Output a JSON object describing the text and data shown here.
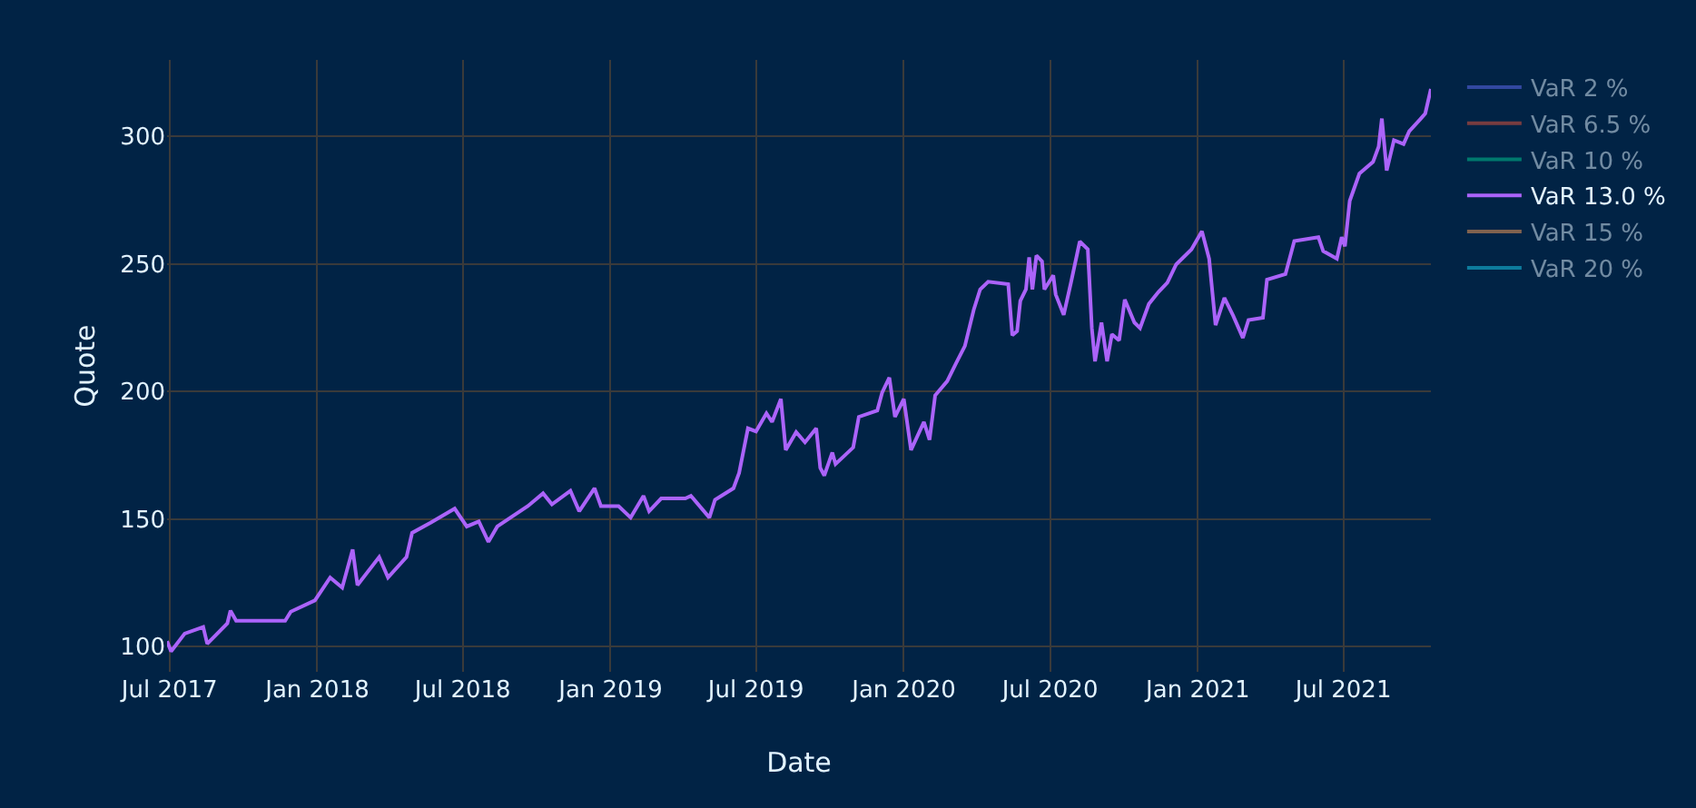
{
  "chart_data": {
    "type": "line",
    "xlabel": "Date",
    "ylabel": "Quote",
    "x": [
      "2017-06-28",
      "2017-07-03",
      "2017-07-20",
      "2017-08-12",
      "2017-08-17",
      "2017-09-11",
      "2017-09-15",
      "2017-09-22",
      "2017-11-22",
      "2017-11-29",
      "2017-12-29",
      "2018-01-17",
      "2018-02-01",
      "2018-02-14",
      "2018-02-20",
      "2018-03-19",
      "2018-03-30",
      "2018-04-22",
      "2018-04-29",
      "2018-05-22",
      "2018-06-21",
      "2018-07-06",
      "2018-07-21",
      "2018-08-02",
      "2018-08-13",
      "2018-09-20",
      "2018-10-09",
      "2018-10-20",
      "2018-11-12",
      "2018-11-23",
      "2018-12-12",
      "2018-12-20",
      "2019-01-11",
      "2019-01-26",
      "2019-02-11",
      "2019-02-18",
      "2019-03-05",
      "2019-04-04",
      "2019-04-11",
      "2019-05-04",
      "2019-05-11",
      "2019-06-03",
      "2019-06-10",
      "2019-06-21",
      "2019-07-01",
      "2019-07-14",
      "2019-07-21",
      "2019-08-01",
      "2019-08-07",
      "2019-08-20",
      "2019-08-31",
      "2019-09-14",
      "2019-09-19",
      "2019-09-24",
      "2019-10-04",
      "2019-10-08",
      "2019-10-30",
      "2019-11-06",
      "2019-11-29",
      "2019-12-05",
      "2019-12-14",
      "2019-12-21",
      "2020-01-01",
      "2020-01-10",
      "2020-01-26",
      "2020-02-02",
      "2020-02-09",
      "2020-02-24",
      "2020-03-06",
      "2020-03-17",
      "2020-03-28",
      "2020-04-05",
      "2020-04-15",
      "2020-05-10",
      "2020-05-15",
      "2020-05-21",
      "2020-05-25",
      "2020-06-01",
      "2020-06-05",
      "2020-06-09",
      "2020-06-14",
      "2020-06-21",
      "2020-06-24",
      "2020-07-05",
      "2020-07-08",
      "2020-07-18",
      "2020-07-27",
      "2020-08-07",
      "2020-08-17",
      "2020-08-22",
      "2020-08-26",
      "2020-09-03",
      "2020-09-10",
      "2020-09-16",
      "2020-09-25",
      "2020-10-02",
      "2020-10-14",
      "2020-10-21",
      "2020-11-01",
      "2020-11-13",
      "2020-11-24",
      "2020-12-05",
      "2020-12-24",
      "2021-01-06",
      "2021-01-15",
      "2021-01-23",
      "2021-02-03",
      "2021-02-14",
      "2021-02-26",
      "2021-03-05",
      "2021-03-23",
      "2021-03-28",
      "2021-04-20",
      "2021-05-01",
      "2021-05-31",
      "2021-06-06",
      "2021-06-23",
      "2021-06-29",
      "2021-07-03",
      "2021-07-09",
      "2021-07-21",
      "2021-08-07",
      "2021-08-14",
      "2021-08-18",
      "2021-08-24",
      "2021-09-02",
      "2021-09-14",
      "2021-09-21",
      "2021-10-05",
      "2021-10-11",
      "2021-10-18"
    ],
    "series": [
      {
        "name": "VaR 2 %",
        "color": "#636efa",
        "values": [
          null,
          null,
          null,
          null,
          null,
          null,
          null,
          null,
          null,
          null,
          null,
          null,
          null,
          null,
          null,
          null,
          null,
          null,
          null,
          null,
          null,
          null,
          null,
          null,
          null,
          null,
          null,
          null,
          null,
          null,
          null,
          null,
          null,
          null,
          null,
          null,
          null,
          null,
          null,
          null,
          null,
          null,
          null,
          null,
          null,
          null,
          null,
          null,
          null,
          null,
          null,
          null,
          null,
          null,
          null,
          null,
          null,
          null,
          null,
          null,
          null,
          null,
          null,
          null,
          null,
          null,
          null,
          null,
          null,
          null,
          null,
          null,
          null,
          null,
          null,
          null,
          null,
          null,
          null,
          null,
          null,
          null,
          null,
          null,
          null,
          null,
          null,
          null,
          null,
          null,
          null,
          null,
          null,
          null,
          null,
          null,
          null,
          null,
          null,
          null,
          null,
          null,
          null,
          null,
          null,
          null,
          null,
          null,
          null,
          null,
          null,
          null,
          null,
          null,
          null,
          null,
          null,
          null,
          null,
          null,
          null,
          null,
          null,
          null,
          null,
          null,
          null,
          null,
          null,
          null,
          null
        ]
      },
      {
        "name": "VaR 6.5 %",
        "color": "#ef553b",
        "values": [
          null,
          null,
          null,
          null,
          null,
          null,
          null,
          null,
          null,
          null,
          null,
          null,
          null,
          null,
          null,
          null,
          null,
          null,
          null,
          null,
          null,
          null,
          null,
          null,
          null,
          null,
          null,
          null,
          null,
          null,
          null,
          null,
          null,
          null,
          null,
          null,
          null,
          null,
          null,
          null,
          null,
          null,
          null,
          null,
          null,
          null,
          null,
          null,
          null,
          null,
          null,
          null,
          null,
          null,
          null,
          null,
          null,
          null,
          null,
          null,
          null,
          null,
          null,
          null,
          null,
          null,
          null,
          null,
          null,
          null,
          null,
          null,
          null,
          null,
          null,
          null,
          null,
          null,
          null,
          null,
          null,
          null,
          null,
          null,
          null,
          null,
          null,
          null,
          null,
          null,
          null,
          null,
          null,
          null,
          null,
          null,
          null,
          null,
          null,
          null,
          null,
          null,
          null,
          null,
          null,
          null,
          null,
          null,
          null,
          null,
          null,
          null,
          null,
          null,
          null,
          null,
          null,
          null,
          null,
          null,
          null,
          null,
          null,
          null,
          null,
          null,
          null,
          null,
          null,
          null,
          null
        ]
      },
      {
        "name": "VaR 10 %",
        "color": "#00cc96",
        "values": [
          null,
          null,
          null,
          null,
          null,
          null,
          null,
          null,
          null,
          null,
          null,
          null,
          null,
          null,
          null,
          null,
          null,
          null,
          null,
          null,
          null,
          null,
          null,
          null,
          null,
          null,
          null,
          null,
          null,
          null,
          null,
          null,
          null,
          null,
          null,
          null,
          null,
          null,
          null,
          null,
          null,
          null,
          null,
          null,
          null,
          null,
          null,
          null,
          null,
          null,
          null,
          null,
          null,
          null,
          null,
          null,
          null,
          null,
          null,
          null,
          null,
          null,
          null,
          null,
          null,
          null,
          null,
          null,
          null,
          null,
          null,
          null,
          null,
          null,
          null,
          null,
          null,
          null,
          null,
          null,
          null,
          null,
          null,
          null,
          null,
          null,
          null,
          null,
          null,
          null,
          null,
          null,
          null,
          null,
          null,
          null,
          null,
          null,
          null,
          null,
          null,
          null,
          null,
          null,
          null,
          null,
          null,
          null,
          null,
          null,
          null,
          null,
          null,
          null,
          null,
          null,
          null,
          null,
          null,
          null,
          null,
          null,
          null,
          null,
          null,
          null,
          null,
          null,
          null,
          null,
          null
        ]
      },
      {
        "name": "VaR 13.0 %",
        "color": "#ab63fa",
        "values": [
          102,
          98,
          105,
          107.6,
          101,
          109,
          114,
          110,
          110,
          113.6,
          118,
          127,
          123,
          138,
          124,
          135,
          127,
          135,
          144.5,
          148.5,
          154,
          147,
          149,
          141,
          147,
          155,
          160,
          155.7,
          161,
          153,
          162,
          155,
          155,
          150.5,
          159,
          153,
          158,
          158,
          159,
          150.5,
          157.5,
          162,
          168,
          185.5,
          184.3,
          191.4,
          188,
          197,
          177,
          184,
          180,
          185.5,
          170,
          167,
          176,
          171.5,
          178,
          190,
          192.5,
          199.5,
          205.4,
          190,
          197,
          177,
          188,
          181,
          198.4,
          204,
          211,
          217.8,
          232,
          240,
          243,
          242,
          222,
          223.6,
          235.5,
          240,
          252.6,
          240,
          253.3,
          251,
          240,
          245.5,
          238,
          230,
          242.6,
          258.8,
          255.7,
          224.8,
          211.8,
          227,
          211.8,
          222.4,
          220,
          236,
          227,
          224.8,
          234.3,
          239,
          242.6,
          249.8,
          255.7,
          262.8,
          252,
          226,
          236.7,
          229.6,
          221,
          228,
          228.9,
          243.8,
          246,
          259,
          260.5,
          255,
          252,
          260.5,
          256.9,
          274.7,
          285.4,
          290,
          296,
          307,
          286.6,
          298.5,
          297,
          302,
          306.8,
          309,
          318.6
        ]
      },
      {
        "name": "VaR 15 %",
        "color": "#ffa15a",
        "values": [
          null,
          null,
          null,
          null,
          null,
          null,
          null,
          null,
          null,
          null,
          null,
          null,
          null,
          null,
          null,
          null,
          null,
          null,
          null,
          null,
          null,
          null,
          null,
          null,
          null,
          null,
          null,
          null,
          null,
          null,
          null,
          null,
          null,
          null,
          null,
          null,
          null,
          null,
          null,
          null,
          null,
          null,
          null,
          null,
          null,
          null,
          null,
          null,
          null,
          null,
          null,
          null,
          null,
          null,
          null,
          null,
          null,
          null,
          null,
          null,
          null,
          null,
          null,
          null,
          null,
          null,
          null,
          null,
          null,
          null,
          null,
          null,
          null,
          null,
          null,
          null,
          null,
          null,
          null,
          null,
          null,
          null,
          null,
          null,
          null,
          null,
          null,
          null,
          null,
          null,
          null,
          null,
          null,
          null,
          null,
          null,
          null,
          null,
          null,
          null,
          null,
          null,
          null,
          null,
          null,
          null,
          null,
          null,
          null,
          null,
          null,
          null,
          null,
          null,
          null,
          null,
          null,
          null,
          null,
          null,
          null,
          null,
          null,
          null,
          null,
          null,
          null,
          null,
          null,
          null,
          null
        ]
      },
      {
        "name": "VaR 20 %",
        "color": "#19d3f3",
        "values": [
          null,
          null,
          null,
          null,
          null,
          null,
          null,
          null,
          null,
          null,
          null,
          null,
          null,
          null,
          null,
          null,
          null,
          null,
          null,
          null,
          null,
          null,
          null,
          null,
          null,
          null,
          null,
          null,
          null,
          null,
          null,
          null,
          null,
          null,
          null,
          null,
          null,
          null,
          null,
          null,
          null,
          null,
          null,
          null,
          null,
          null,
          null,
          null,
          null,
          null,
          null,
          null,
          null,
          null,
          null,
          null,
          null,
          null,
          null,
          null,
          null,
          null,
          null,
          null,
          null,
          null,
          null,
          null,
          null,
          null,
          null,
          null,
          null,
          null,
          null,
          null,
          null,
          null,
          null,
          null,
          null,
          null,
          null,
          null,
          null,
          null,
          null,
          null,
          null,
          null,
          null,
          null,
          null,
          null,
          null,
          null,
          null,
          null,
          null,
          null,
          null,
          null,
          null,
          null,
          null,
          null,
          null,
          null,
          null,
          null,
          null,
          null,
          null,
          null,
          null,
          null,
          null,
          null,
          null,
          null,
          null,
          null,
          null,
          null,
          null,
          null,
          null,
          null,
          null,
          null,
          null
        ]
      }
    ],
    "xlim": [
      "2017-06-28",
      "2021-10-18"
    ],
    "xticks": [
      {
        "value": "2017-07-01",
        "label": "Jul 2017"
      },
      {
        "value": "2018-01-01",
        "label": "Jan 2018"
      },
      {
        "value": "2018-07-01",
        "label": "Jul 2018"
      },
      {
        "value": "2019-01-01",
        "label": "Jan 2019"
      },
      {
        "value": "2019-07-01",
        "label": "Jul 2019"
      },
      {
        "value": "2020-01-01",
        "label": "Jan 2020"
      },
      {
        "value": "2020-07-01",
        "label": "Jul 2020"
      },
      {
        "value": "2021-01-01",
        "label": "Jan 2021"
      },
      {
        "value": "2021-07-01",
        "label": "Jul 2021"
      }
    ],
    "ylim": [
      90,
      330
    ],
    "yticks": [
      100,
      150,
      200,
      250,
      300
    ],
    "grid": true,
    "legend": "top right",
    "marker": "none",
    "line_style": "solid"
  }
}
